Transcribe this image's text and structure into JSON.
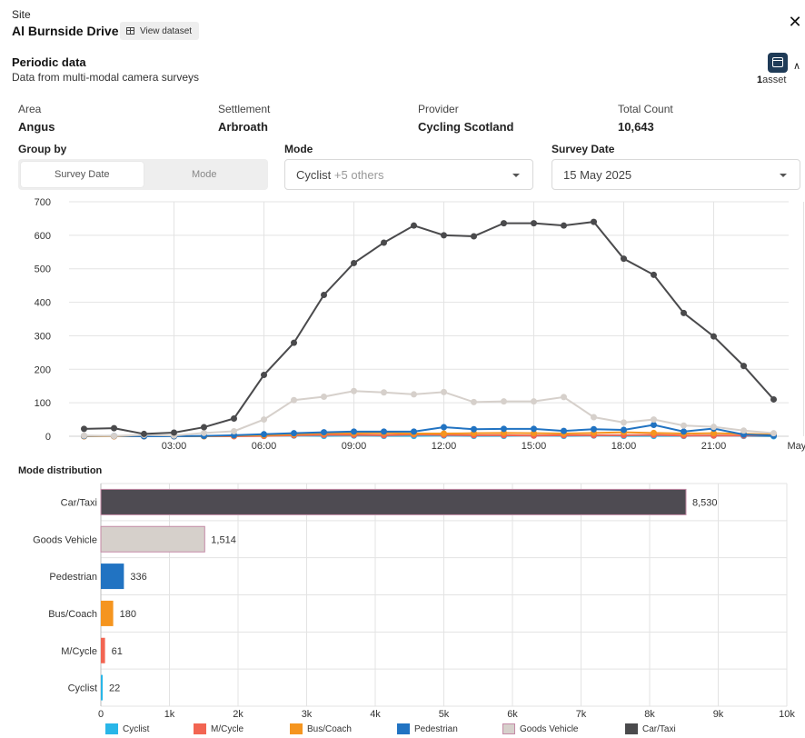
{
  "header": {
    "site_label": "Site",
    "site_name": "Al Burnside Drive",
    "view_dataset_label": "View dataset"
  },
  "section": {
    "title": "Periodic data",
    "subtitle": "Data from multi-modal camera surveys",
    "asset_count": "1",
    "asset_label": "asset"
  },
  "meta": [
    {
      "key": "Area",
      "value": "Angus"
    },
    {
      "key": "Settlement",
      "value": "Arbroath"
    },
    {
      "key": "Provider",
      "value": "Cycling Scotland"
    },
    {
      "key": "Total Count",
      "value": "10,643"
    }
  ],
  "controls": {
    "group_by_label": "Group by",
    "group_by_options": [
      "Survey Date",
      "Mode"
    ],
    "group_by_selected": "Survey Date",
    "mode_label": "Mode",
    "mode_value": "Cyclist",
    "mode_extra": "+5 others",
    "survey_date_label": "Survey Date",
    "survey_date_value": "15 May 2025"
  },
  "chart_data": [
    {
      "type": "line",
      "x": [
        "00:00",
        "01:00",
        "02:00",
        "03:00",
        "04:00",
        "05:00",
        "06:00",
        "07:00",
        "08:00",
        "09:00",
        "10:00",
        "11:00",
        "12:00",
        "13:00",
        "14:00",
        "15:00",
        "16:00",
        "17:00",
        "18:00",
        "19:00",
        "20:00",
        "21:00",
        "22:00",
        "23:00"
      ],
      "xticks": [
        "03:00",
        "06:00",
        "09:00",
        "12:00",
        "15:00",
        "18:00",
        "21:00",
        "May 16"
      ],
      "xtick_hours": [
        3,
        6,
        9,
        12,
        15,
        18,
        21,
        24
      ],
      "ylim": [
        0,
        700
      ],
      "yticks": [
        0,
        100,
        200,
        300,
        400,
        500,
        600,
        700
      ],
      "grid": true,
      "series": [
        {
          "name": "Cyclist",
          "color": "#29b6e8",
          "values": [
            0,
            0,
            0,
            0,
            0,
            1,
            1,
            2,
            1,
            2,
            1,
            1,
            2,
            1,
            1,
            2,
            1,
            2,
            1,
            1,
            1,
            2,
            1,
            0
          ]
        },
        {
          "name": "M/Cycle",
          "color": "#f26552",
          "values": [
            0,
            0,
            0,
            0,
            0,
            0,
            1,
            3,
            4,
            4,
            3,
            5,
            4,
            3,
            3,
            2,
            3,
            3,
            3,
            4,
            2,
            2,
            2,
            2
          ]
        },
        {
          "name": "Bus/Coach",
          "color": "#f5951f",
          "values": [
            0,
            0,
            0,
            0,
            0,
            2,
            3,
            6,
            9,
            9,
            10,
            8,
            8,
            9,
            10,
            9,
            8,
            10,
            12,
            10,
            8,
            9,
            7,
            5
          ]
        },
        {
          "name": "Pedestrian",
          "color": "#2173c2",
          "values": [
            1,
            1,
            0,
            0,
            1,
            3,
            6,
            9,
            12,
            14,
            14,
            14,
            27,
            21,
            22,
            22,
            16,
            21,
            19,
            34,
            14,
            23,
            5,
            2
          ]
        },
        {
          "name": "Goods Vehicle",
          "color": "#d6d0cb",
          "values": [
            2,
            1,
            4,
            2,
            10,
            15,
            50,
            108,
            118,
            135,
            131,
            125,
            132,
            102,
            104,
            104,
            117,
            57,
            41,
            50,
            32,
            28,
            17,
            9
          ]
        },
        {
          "name": "Car/Taxi",
          "color": "#4a4a4c",
          "values": [
            22,
            24,
            7,
            11,
            27,
            53,
            183,
            279,
            422,
            517,
            578,
            629,
            600,
            597,
            636,
            636,
            629,
            640,
            530,
            482,
            368,
            298,
            210,
            110
          ]
        }
      ]
    },
    {
      "type": "bar",
      "orientation": "horizontal",
      "title": "Mode distribution",
      "categories": [
        "Car/Taxi",
        "Goods Vehicle",
        "Pedestrian",
        "Bus/Coach",
        "M/Cycle",
        "Cyclist"
      ],
      "values": [
        8530,
        1514,
        336,
        180,
        61,
        22
      ],
      "value_labels": [
        "8,530",
        "1,514",
        "336",
        "180",
        "61",
        "22"
      ],
      "colors": [
        "#4e4b52",
        "#d6d0cb",
        "#2173c2",
        "#f5951f",
        "#f26552",
        "#29b6e8"
      ],
      "xlim": [
        0,
        10000
      ],
      "xticks": [
        0,
        1000,
        2000,
        3000,
        4000,
        5000,
        6000,
        7000,
        8000,
        9000,
        10000
      ],
      "xtick_labels": [
        "0",
        "1k",
        "2k",
        "3k",
        "4k",
        "5k",
        "6k",
        "7k",
        "8k",
        "9k",
        "10k"
      ],
      "grid": true
    }
  ],
  "legend": [
    {
      "label": "Cyclist",
      "color": "#29b6e8"
    },
    {
      "label": "M/Cycle",
      "color": "#f26552"
    },
    {
      "label": "Bus/Coach",
      "color": "#f5951f"
    },
    {
      "label": "Pedestrian",
      "color": "#2173c2"
    },
    {
      "label": "Goods Vehicle",
      "color": "#d6d0cb"
    },
    {
      "label": "Car/Taxi",
      "color": "#4a4a4c"
    }
  ]
}
